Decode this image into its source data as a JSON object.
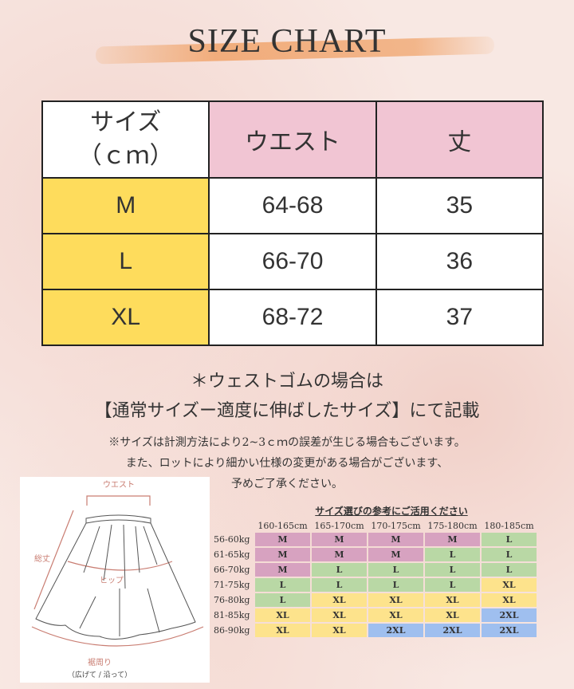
{
  "title": "SIZE CHART",
  "main_table": {
    "header": [
      "サイズ\n（ｃｍ）",
      "ウエスト",
      "丈"
    ],
    "rows": [
      [
        "M",
        "64-68",
        "35"
      ],
      [
        "L",
        "66-70",
        "36"
      ],
      [
        "XL",
        "68-72",
        "37"
      ]
    ]
  },
  "notes": {
    "line1": "＊ウェストゴムの場合は",
    "line2": "【通常サイズー適度に伸ばしたサイズ】にて記載",
    "small1": "※サイズは計測方法により2~3ｃｍの誤差が生じる場合もございます。",
    "small2": "また、ロットにより細かい仕様の変更がある場合がございます、",
    "small3": "予めご了承ください。"
  },
  "diagram": {
    "waist": "ウエスト",
    "length": "総丈",
    "hip": "ヒップ",
    "hem": "裾周り",
    "hem_note": "（広げて / 沿って）"
  },
  "reference": {
    "title": "サイズ選びの参考にご活用ください",
    "heights": [
      "160-165cm",
      "165-170cm",
      "170-175cm",
      "175-180cm",
      "180-185cm"
    ],
    "rows": [
      {
        "weight": "56-60kg",
        "sizes": [
          "M",
          "M",
          "M",
          "M",
          "L"
        ]
      },
      {
        "weight": "61-65kg",
        "sizes": [
          "M",
          "M",
          "M",
          "L",
          "L"
        ]
      },
      {
        "weight": "66-70kg",
        "sizes": [
          "M",
          "L",
          "L",
          "L",
          "L"
        ]
      },
      {
        "weight": "71-75kg",
        "sizes": [
          "L",
          "L",
          "L",
          "L",
          "XL"
        ]
      },
      {
        "weight": "76-80kg",
        "sizes": [
          "L",
          "XL",
          "XL",
          "XL",
          "XL"
        ]
      },
      {
        "weight": "81-85kg",
        "sizes": [
          "XL",
          "XL",
          "XL",
          "XL",
          "2XL"
        ]
      },
      {
        "weight": "86-90kg",
        "sizes": [
          "XL",
          "XL",
          "2XL",
          "2XL",
          "2XL"
        ]
      }
    ],
    "colors": {
      "M": "#d7a2c0",
      "L": "#b9d8a5",
      "XL": "#fde38c",
      "2XL": "#9fbfef"
    }
  }
}
